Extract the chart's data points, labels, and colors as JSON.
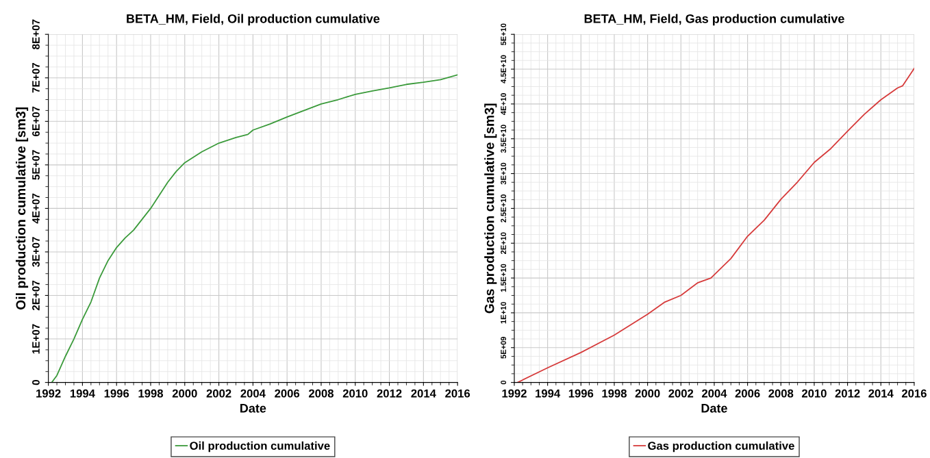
{
  "chart_data": [
    {
      "type": "line",
      "title": "BETA_HM, Field, Oil production cumulative",
      "xlabel": "Date",
      "ylabel": "Oil production cumulative [sm3]",
      "x": [
        1992.2,
        1992.5,
        1993,
        1993.5,
        1994,
        1994.5,
        1995,
        1995.5,
        1996,
        1996.5,
        1997,
        1998,
        1999,
        1999.5,
        2000,
        2001,
        2002,
        2003,
        2003.7,
        2004,
        2005,
        2006,
        2007,
        2008,
        2009,
        2010,
        2011,
        2012,
        2013,
        2014,
        2015,
        2016
      ],
      "series": [
        {
          "name": "Oil production cumulative",
          "color": "#3a9a3a",
          "values": [
            0,
            1600000,
            6000000,
            10000000,
            14500000,
            18500000,
            24000000,
            28000000,
            31000000,
            33200000,
            35000000,
            40000000,
            46000000,
            48500000,
            50500000,
            53000000,
            55000000,
            56300000,
            57000000,
            58000000,
            59400000,
            61000000,
            62500000,
            64000000,
            65000000,
            66200000,
            67000000,
            67700000,
            68500000,
            69000000,
            69600000,
            70700000
          ]
        }
      ],
      "xlim": [
        1992,
        2016
      ],
      "xticks": [
        1992,
        1994,
        1996,
        1998,
        2000,
        2002,
        2004,
        2006,
        2008,
        2010,
        2012,
        2014,
        2016
      ],
      "ylim": [
        0,
        80000000
      ],
      "yticks": [
        {
          "value": 0,
          "label": "0"
        },
        {
          "value": 10000000,
          "label": "1E+07"
        },
        {
          "value": 20000000,
          "label": "2E+07"
        },
        {
          "value": 30000000,
          "label": "3E+07"
        },
        {
          "value": 40000000,
          "label": "4E+07"
        },
        {
          "value": 50000000,
          "label": "5E+07"
        },
        {
          "value": 60000000,
          "label": "6E+07"
        },
        {
          "value": 70000000,
          "label": "7E+07"
        },
        {
          "value": 80000000,
          "label": "8E+07"
        }
      ],
      "grid": true,
      "legend": "bottom",
      "line_style": "solid"
    },
    {
      "type": "line",
      "title": "BETA_HM, Field, Gas production cumulative",
      "xlabel": "Date",
      "ylabel": "Gas production cumulative [sm3]",
      "x": [
        1992.2,
        1994,
        1996,
        1998,
        2000,
        2001,
        2002,
        2003,
        2003.8,
        2005,
        2006,
        2007,
        2008,
        2009,
        2010,
        2011,
        2012,
        2013,
        2014,
        2015,
        2015.3,
        2016
      ],
      "series": [
        {
          "name": "Gas production cumulative",
          "color": "#d63a3a",
          "values": [
            0,
            2100000000,
            4300000000,
            6800000000,
            9800000000,
            11500000000,
            12500000000,
            14300000000,
            15000000000,
            17800000000,
            21000000000,
            23300000000,
            26300000000,
            28800000000,
            31600000000,
            33600000000,
            36100000000,
            38500000000,
            40600000000,
            42300000000,
            42600000000,
            45100000000
          ]
        }
      ],
      "xlim": [
        1992,
        2016
      ],
      "xticks": [
        1992,
        1994,
        1996,
        1998,
        2000,
        2002,
        2004,
        2006,
        2008,
        2010,
        2012,
        2014,
        2016
      ],
      "ylim": [
        0,
        50000000000
      ],
      "yticks": [
        {
          "value": 0,
          "label": "0"
        },
        {
          "value": 5000000000,
          "label": "5E+09"
        },
        {
          "value": 10000000000,
          "label": "1E+10"
        },
        {
          "value": 15000000000,
          "label": "1.5E+10"
        },
        {
          "value": 20000000000,
          "label": "2E+10"
        },
        {
          "value": 25000000000,
          "label": "2.5E+10"
        },
        {
          "value": 30000000000,
          "label": "3E+10"
        },
        {
          "value": 35000000000,
          "label": "3.5E+10"
        },
        {
          "value": 40000000000,
          "label": "4E+10"
        },
        {
          "value": 45000000000,
          "label": "4.5E+10"
        },
        {
          "value": 50000000000,
          "label": "5E+10"
        }
      ],
      "grid": true,
      "legend": "bottom",
      "line_style": "solid"
    }
  ]
}
